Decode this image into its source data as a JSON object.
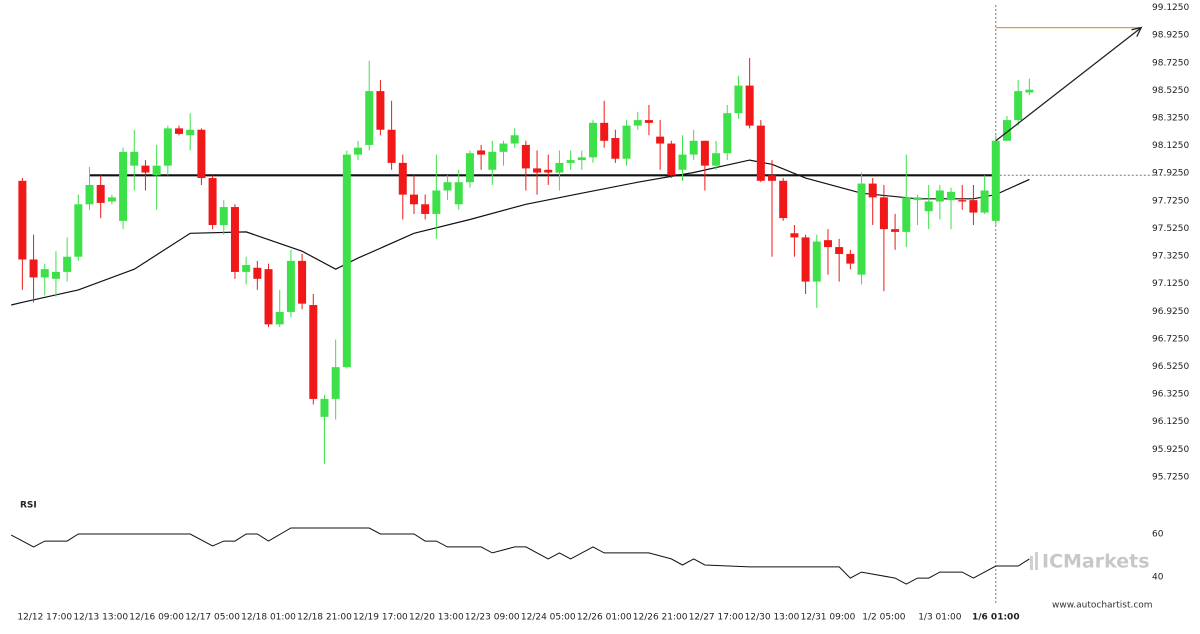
{
  "chart_data": {
    "type": "candlestick",
    "x": [
      0,
      1,
      2,
      3,
      4,
      5,
      6,
      7,
      8,
      9,
      10,
      11,
      12,
      13,
      14,
      15,
      16,
      17,
      18,
      19,
      20,
      21,
      22,
      23,
      24,
      25,
      26,
      27,
      28,
      29,
      30,
      31,
      32,
      33,
      34,
      35,
      36,
      37,
      38,
      39,
      40,
      41,
      42,
      43,
      44,
      45,
      46,
      47,
      48,
      49,
      50,
      51,
      52,
      53,
      54,
      55,
      56,
      57,
      58,
      59,
      60,
      61,
      62,
      63,
      64,
      65,
      66,
      67,
      68,
      69,
      70,
      71,
      72,
      73,
      74,
      75,
      76,
      77,
      78,
      79,
      80,
      81,
      82,
      83,
      84,
      85,
      86,
      87,
      88,
      89,
      90
    ],
    "open": [
      97.87,
      97.3,
      97.17,
      97.16,
      97.21,
      97.32,
      97.7,
      97.84,
      97.72,
      97.58,
      97.98,
      97.98,
      97.91,
      97.98,
      98.25,
      98.2,
      98.24,
      97.89,
      97.55,
      97.68,
      97.21,
      97.24,
      97.23,
      96.83,
      96.92,
      97.29,
      96.97,
      96.16,
      96.29,
      96.52,
      98.06,
      98.13,
      98.52,
      98.24,
      98.0,
      97.77,
      97.7,
      97.63,
      97.8,
      97.7,
      97.86,
      98.09,
      97.95,
      98.08,
      98.14,
      98.13,
      97.96,
      97.95,
      97.93,
      98.0,
      98.02,
      98.04,
      98.29,
      98.18,
      98.03,
      98.27,
      98.31,
      98.19,
      98.14,
      97.95,
      98.06,
      98.16,
      97.98,
      98.07,
      98.36,
      98.56,
      98.27,
      97.91,
      97.87,
      97.49,
      97.46,
      97.14,
      97.44,
      97.39,
      97.34,
      97.19,
      97.85,
      97.75,
      97.52,
      97.5,
      97.73,
      97.65,
      97.72,
      97.73,
      97.73,
      97.73,
      97.64,
      97.58,
      98.16,
      98.31,
      98.51
    ],
    "high": [
      97.89,
      97.48,
      97.27,
      97.36,
      97.46,
      97.77,
      97.97,
      97.91,
      97.77,
      98.11,
      98.24,
      98.02,
      98.13,
      98.27,
      98.27,
      98.36,
      98.25,
      97.91,
      97.73,
      97.7,
      97.32,
      97.29,
      97.27,
      97.08,
      97.37,
      97.34,
      97.05,
      96.32,
      96.72,
      98.09,
      98.16,
      98.74,
      98.6,
      98.45,
      98.06,
      97.91,
      97.77,
      98.06,
      97.91,
      97.95,
      98.09,
      98.13,
      98.16,
      98.16,
      98.25,
      98.16,
      98.09,
      98.06,
      98.09,
      98.09,
      98.09,
      98.31,
      98.45,
      98.24,
      98.31,
      98.37,
      98.42,
      98.31,
      98.16,
      98.2,
      98.24,
      98.16,
      98.16,
      98.42,
      98.63,
      98.76,
      98.31,
      98.02,
      97.89,
      97.55,
      97.48,
      97.48,
      97.52,
      97.45,
      97.37,
      97.93,
      97.89,
      97.84,
      97.63,
      98.06,
      97.77,
      97.84,
      97.84,
      97.82,
      97.84,
      97.84,
      97.91,
      98.2,
      98.34,
      98.6,
      98.61
    ],
    "low": [
      97.08,
      96.99,
      97.04,
      97.03,
      97.14,
      97.29,
      97.66,
      97.6,
      97.7,
      97.52,
      97.8,
      97.8,
      97.66,
      97.91,
      98.2,
      98.09,
      97.84,
      97.52,
      97.48,
      97.16,
      97.12,
      97.08,
      96.81,
      96.81,
      96.88,
      96.94,
      96.25,
      95.82,
      96.14,
      96.51,
      98.02,
      98.09,
      98.2,
      97.95,
      97.59,
      97.63,
      97.59,
      97.45,
      97.73,
      97.66,
      97.82,
      97.95,
      97.84,
      97.98,
      98.11,
      97.8,
      97.77,
      97.84,
      97.8,
      97.95,
      97.95,
      98.0,
      98.11,
      98.0,
      97.98,
      98.24,
      98.2,
      97.95,
      97.89,
      97.87,
      98.02,
      97.8,
      97.95,
      98.02,
      98.32,
      98.25,
      97.86,
      97.32,
      97.58,
      97.32,
      97.05,
      96.95,
      97.19,
      97.14,
      97.23,
      97.12,
      97.55,
      97.07,
      97.37,
      97.39,
      97.55,
      97.52,
      97.59,
      97.52,
      97.66,
      97.55,
      97.63,
      97.55,
      98.16,
      98.27,
      98.49
    ],
    "close": [
      97.3,
      97.17,
      97.23,
      97.21,
      97.32,
      97.7,
      97.84,
      97.71,
      97.75,
      98.08,
      98.08,
      97.93,
      97.98,
      98.25,
      98.21,
      98.24,
      97.89,
      97.55,
      97.68,
      97.21,
      97.26,
      97.16,
      96.83,
      96.92,
      97.29,
      96.98,
      96.29,
      96.29,
      96.52,
      98.06,
      98.11,
      98.52,
      98.24,
      98.0,
      97.77,
      97.7,
      97.63,
      97.8,
      97.86,
      97.86,
      98.07,
      98.06,
      98.08,
      98.14,
      98.2,
      97.96,
      97.93,
      97.93,
      98.0,
      98.02,
      98.04,
      98.29,
      98.16,
      98.03,
      98.27,
      98.31,
      98.29,
      98.14,
      97.91,
      98.06,
      98.16,
      97.98,
      98.07,
      98.36,
      98.56,
      98.27,
      97.87,
      97.87,
      97.6,
      97.46,
      97.14,
      97.43,
      97.39,
      97.34,
      97.27,
      97.85,
      97.75,
      97.52,
      97.5,
      97.75,
      97.75,
      97.72,
      97.8,
      97.79,
      97.72,
      97.64,
      97.8,
      98.16,
      98.31,
      98.52,
      98.53
    ],
    "up_color": "#3ee04a",
    "down_color": "#f01818",
    "xlim": [
      -2,
      104
    ],
    "xticks": [
      {
        "value": 2,
        "label": "12/12 17:00"
      },
      {
        "value": 7,
        "label": "12/13 13:00"
      },
      {
        "value": 12,
        "label": "12/16 09:00"
      },
      {
        "value": 17,
        "label": "12/17 05:00"
      },
      {
        "value": 22,
        "label": "12/18 01:00"
      },
      {
        "value": 27,
        "label": "12/18 21:00"
      },
      {
        "value": 32,
        "label": "12/19 17:00"
      },
      {
        "value": 37,
        "label": "12/20 13:00"
      },
      {
        "value": 42,
        "label": "12/23 09:00"
      },
      {
        "value": 47,
        "label": "12/24 05:00"
      },
      {
        "value": 52,
        "label": "12/26 01:00"
      },
      {
        "value": 57,
        "label": "12/26 21:00"
      },
      {
        "value": 62,
        "label": "12/27 17:00"
      },
      {
        "value": 67,
        "label": "12/30 13:00"
      },
      {
        "value": 72,
        "label": "12/31 09:00"
      },
      {
        "value": 77,
        "label": "1/2 05:00"
      },
      {
        "value": 82,
        "label": "1/3 01:00"
      },
      {
        "value": 87,
        "label": "1/6 01:00"
      }
    ],
    "ylim": [
      95.63,
      99.18
    ],
    "yticks": [
      {
        "value": 99.125,
        "label": "99.1250"
      },
      {
        "value": 98.925,
        "label": "98.9250"
      },
      {
        "value": 98.725,
        "label": "98.7250"
      },
      {
        "value": 98.525,
        "label": "98.5250"
      },
      {
        "value": 98.325,
        "label": "98.3250"
      },
      {
        "value": 98.125,
        "label": "98.1250"
      },
      {
        "value": 97.925,
        "label": "97.9250"
      },
      {
        "value": 97.725,
        "label": "97.7250"
      },
      {
        "value": 97.525,
        "label": "97.5250"
      },
      {
        "value": 97.325,
        "label": "97.3250"
      },
      {
        "value": 97.125,
        "label": "97.1250"
      },
      {
        "value": 96.925,
        "label": "96.9250"
      },
      {
        "value": 96.725,
        "label": "96.7250"
      },
      {
        "value": 96.525,
        "label": "96.5250"
      },
      {
        "value": 96.325,
        "label": "96.3250"
      },
      {
        "value": 96.125,
        "label": "96.1250"
      },
      {
        "value": 95.925,
        "label": "95.9250"
      },
      {
        "value": 95.725,
        "label": "95.7250"
      }
    ],
    "grid": false,
    "moving_average": {
      "color": "#111111",
      "x": [
        -1,
        0,
        5,
        10,
        15,
        20,
        25,
        28,
        30,
        35,
        40,
        45,
        50,
        55,
        60,
        65,
        67,
        70,
        75,
        80,
        85,
        87,
        90
      ],
      "values": [
        96.97,
        96.99,
        97.08,
        97.23,
        97.49,
        97.5,
        97.36,
        97.23,
        97.31,
        97.49,
        97.59,
        97.7,
        97.78,
        97.86,
        97.93,
        98.02,
        97.99,
        97.89,
        97.78,
        97.74,
        97.74,
        97.77,
        97.88
      ]
    },
    "support_line": {
      "value": 97.91,
      "x": [
        6,
        87
      ],
      "color": "#111111"
    },
    "resistance_line": {
      "value": 98.98,
      "x": [
        87,
        100
      ],
      "color": "#e39a3c"
    },
    "forecast_arrow": {
      "x": [
        87,
        100
      ],
      "values": [
        98.16,
        98.98
      ],
      "color": "#222222"
    },
    "divider_x": 87,
    "rsi": {
      "title": "RSI",
      "color": "#111111",
      "ylim": [
        30,
        78
      ],
      "yticks": [
        60,
        40
      ],
      "x": [
        -1,
        1,
        2,
        4,
        5,
        15,
        17,
        18,
        19,
        20,
        21,
        22,
        24,
        31,
        32,
        35,
        36,
        37,
        38,
        41,
        42,
        44,
        45,
        47,
        48,
        49,
        51,
        52,
        56,
        58,
        59,
        60,
        61,
        65,
        73,
        74,
        75,
        78,
        79,
        80,
        81,
        82,
        84,
        85,
        86,
        87,
        89,
        90
      ],
      "values": [
        59.5,
        54.0,
        56.7,
        56.7,
        60,
        60,
        54.4,
        56.7,
        56.7,
        60,
        60,
        56.7,
        62.8,
        62.8,
        60,
        60,
        56.7,
        56.7,
        54.0,
        54.0,
        51.2,
        54.0,
        54.0,
        48.4,
        51.2,
        48.4,
        54.0,
        51.2,
        51.2,
        48.4,
        45.6,
        48.4,
        45.6,
        44.7,
        44.7,
        39.5,
        42.3,
        39.5,
        36.7,
        39.5,
        39.5,
        42.3,
        42.3,
        39.5,
        42.3,
        45.1,
        45.1,
        48.4
      ]
    },
    "watermark": "ICMarkets",
    "source": "www.autochartist.com"
  }
}
